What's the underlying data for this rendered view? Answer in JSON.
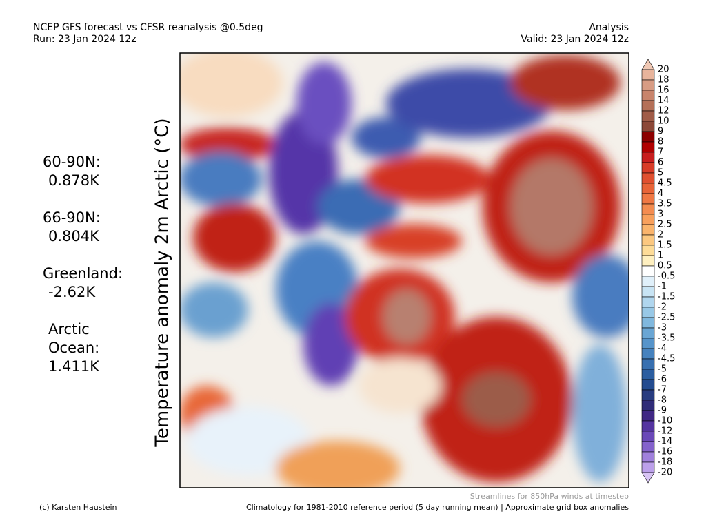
{
  "header": {
    "title": "NCEP GFS forecast vs CFSR reanalysis @0.5deg",
    "run": "Run: 23 Jan 2024 12z",
    "mode": "Analysis",
    "valid": "Valid: 23 Jan 2024 12z"
  },
  "axis_label": "Temperature anomaly 2m Arctic (°C)",
  "stats": [
    {
      "label": [
        "60-90N:"
      ],
      "value": "0.878K"
    },
    {
      "label": [
        "66-90N:"
      ],
      "value": "0.804K"
    },
    {
      "label": [
        "Greenland:"
      ],
      "value": "-2.62K"
    },
    {
      "label": [
        "Arctic",
        "Ocean:"
      ],
      "value": "1.411K"
    }
  ],
  "colorbar": {
    "ticks": [
      20,
      18,
      16,
      14,
      12,
      10,
      9,
      8,
      7,
      6,
      5,
      4.5,
      4,
      3.5,
      3,
      2.5,
      2,
      1.5,
      1,
      0.5,
      -0.5,
      -1,
      -1.5,
      -2,
      -2.5,
      -3,
      -3.5,
      -4,
      -4.5,
      -5,
      -6,
      -7,
      -8,
      -9,
      -10,
      -12,
      -14,
      -16,
      -18,
      -20
    ],
    "colors": [
      "#f0c8b4",
      "#e8b49c",
      "#d89c84",
      "#c8846c",
      "#b47058",
      "#a05c48",
      "#8c4838",
      "#8c0000",
      "#b00000",
      "#c81e1e",
      "#d83c28",
      "#e05030",
      "#e86438",
      "#f07844",
      "#f48c50",
      "#f8a05c",
      "#fab46c",
      "#fcc880",
      "#fedc98",
      "#fff0c0",
      "#ffffff",
      "#e0f0fa",
      "#c8e4f4",
      "#b0d6ee",
      "#98c8e6",
      "#80b8de",
      "#6aa6d4",
      "#5694ca",
      "#4682be",
      "#3870b0",
      "#2c5ea0",
      "#244c90",
      "#283c80",
      "#302c78",
      "#402884",
      "#5434a0",
      "#6a48b8",
      "#8462cc",
      "#a080dc",
      "#bca0ea",
      "#d8c4f4"
    ]
  },
  "footer": {
    "streamlines": "Streamlines for 850hPa winds at timestep",
    "credit": "(c) Karsten Haustein",
    "climatology": "Climatology for 1981-2010 reference period (5 day running mean) | Approximate grid box anomalies"
  }
}
